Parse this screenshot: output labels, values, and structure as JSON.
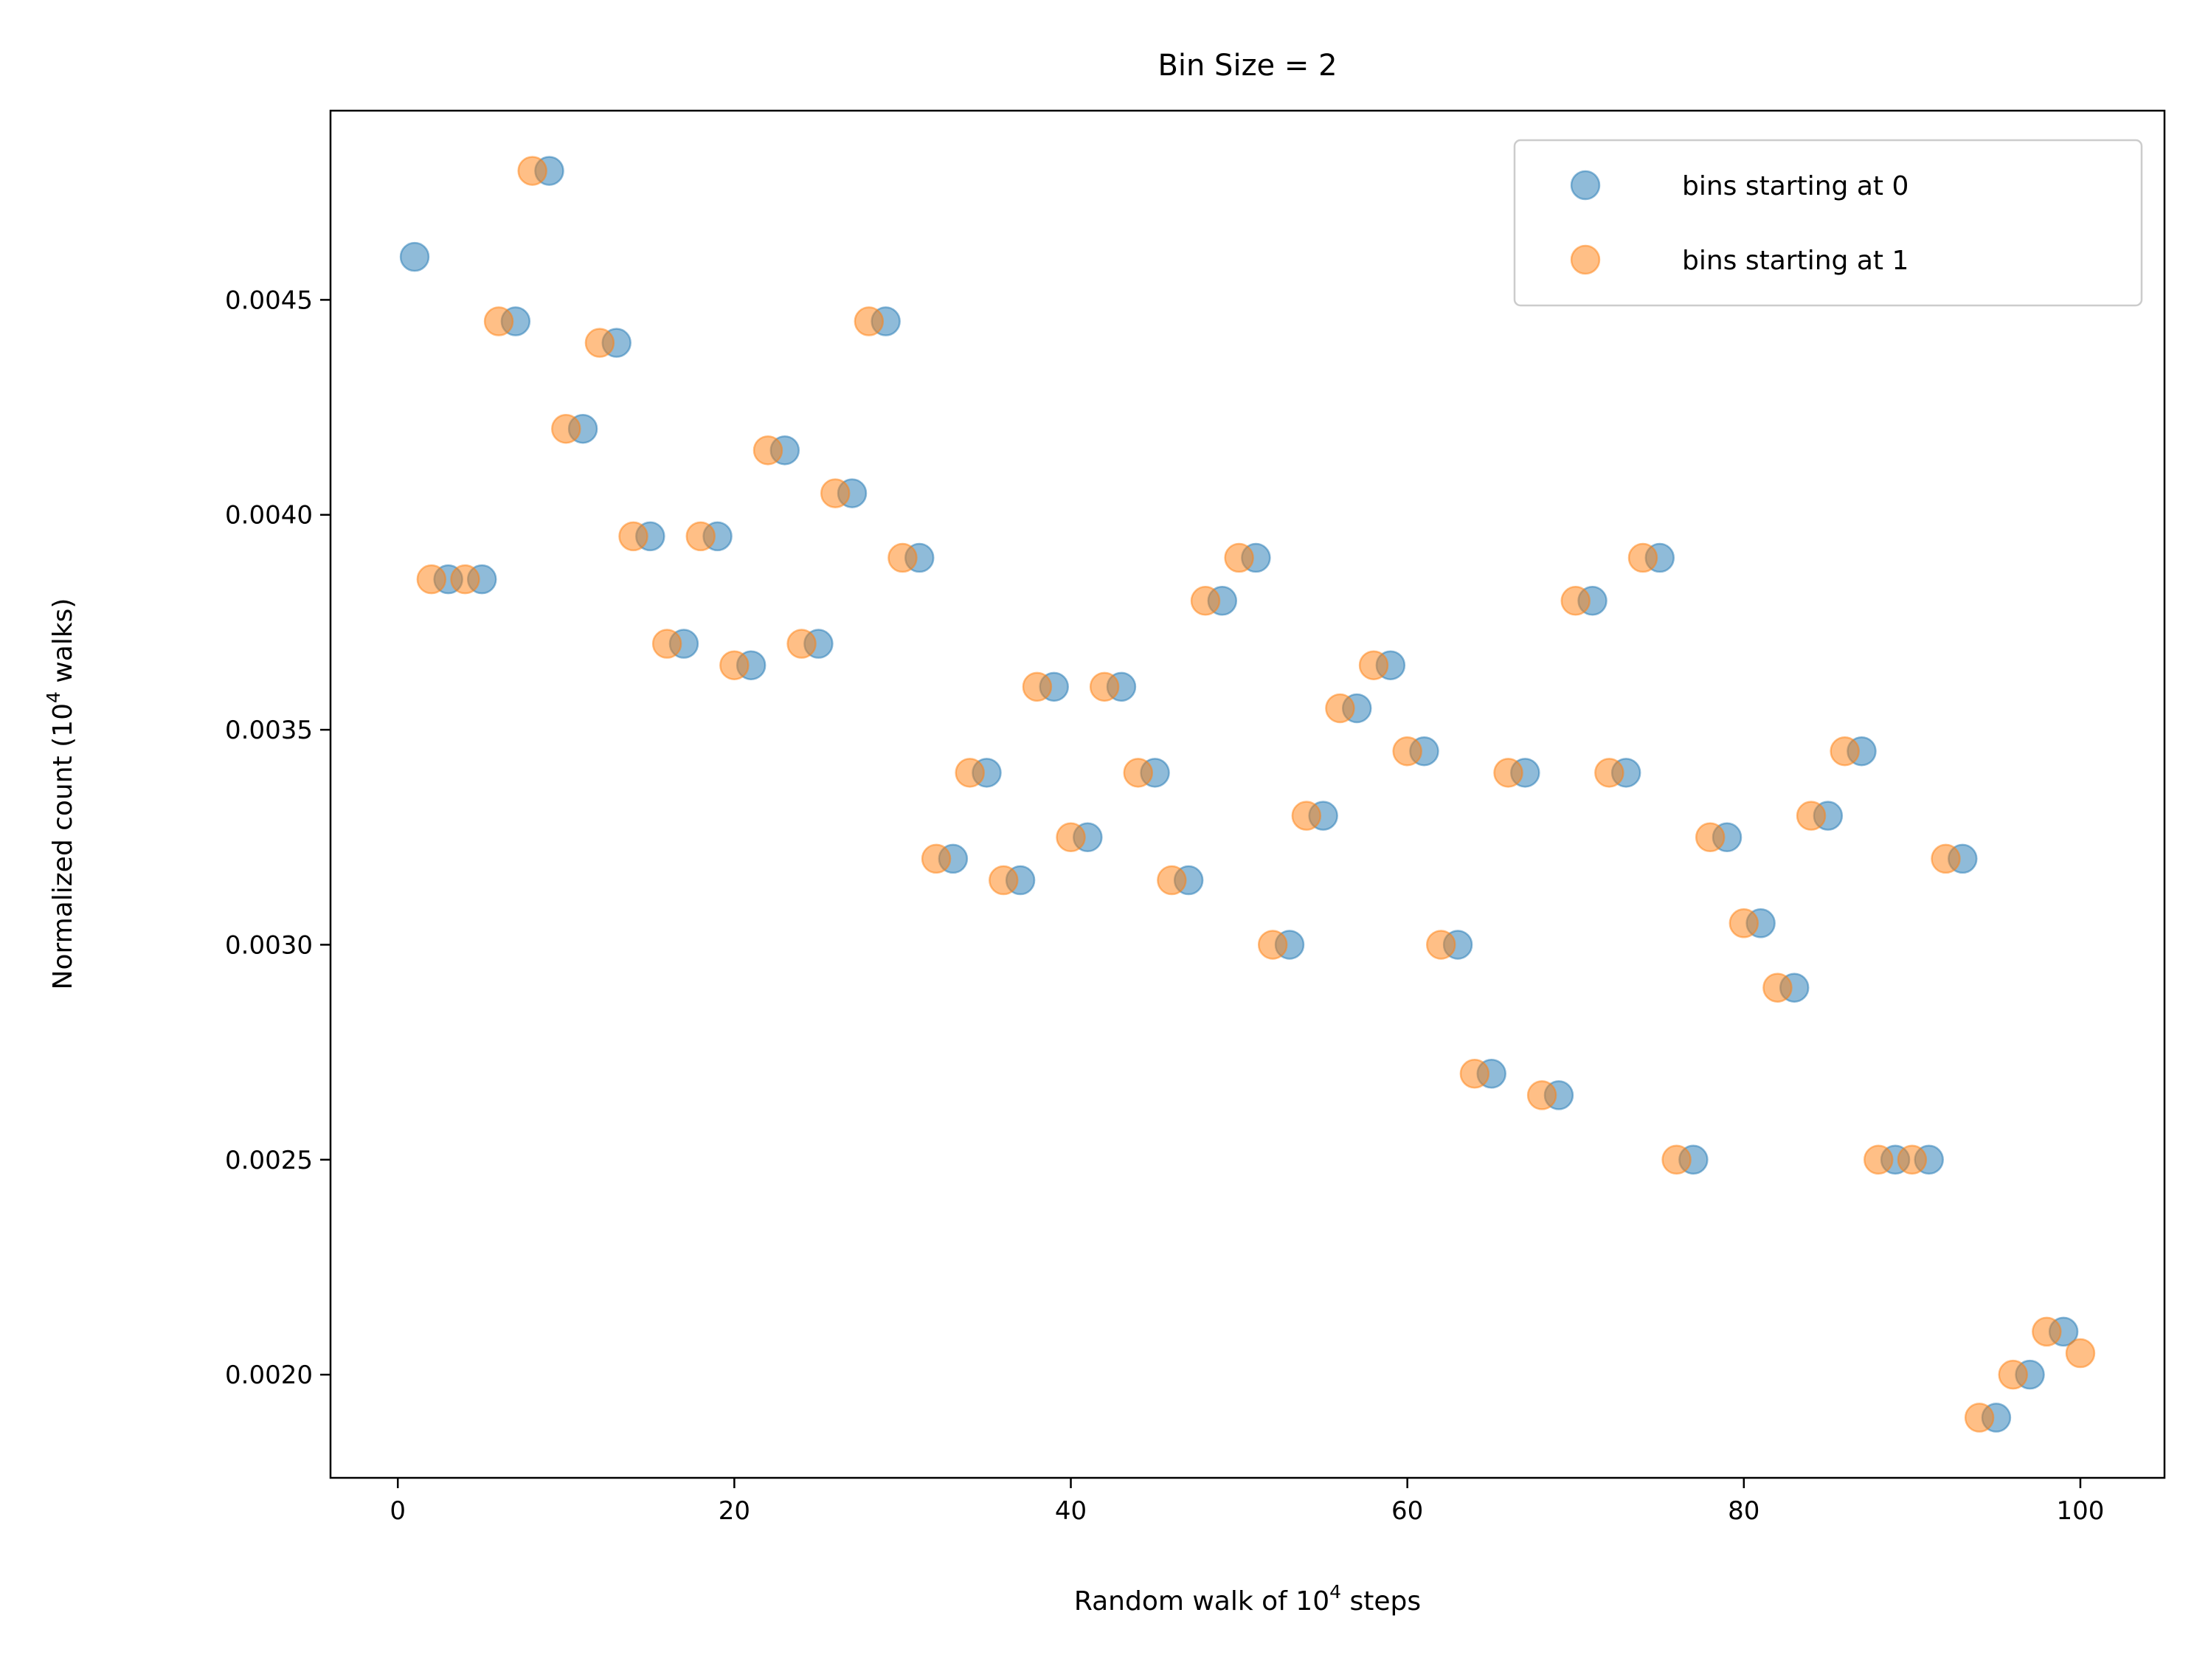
{
  "chart_data": {
    "type": "scatter",
    "title": "Bin Size = 2",
    "xlabel": {
      "base": "Random walk of 10",
      "sup": "4",
      "after": " steps"
    },
    "ylabel": {
      "base": "Normalized count (10",
      "sup": "4",
      "after": " walks)"
    },
    "xlim": [
      -4,
      105
    ],
    "ylim": [
      0.00176,
      0.00494
    ],
    "x_ticks": [
      0,
      20,
      40,
      60,
      80,
      100
    ],
    "x_tick_labels": [
      "0",
      "20",
      "40",
      "60",
      "80",
      "100"
    ],
    "y_ticks": [
      0.002,
      0.0025,
      0.003,
      0.0035,
      0.004,
      0.0045
    ],
    "y_tick_labels": [
      "0.0020",
      "0.0025",
      "0.0030",
      "0.0035",
      "0.0040",
      "0.0045"
    ],
    "grid": false,
    "legend_position": "top-right",
    "series": [
      {
        "name": "bins starting at 0",
        "color": "#1f77b4",
        "x": [
          1,
          3,
          5,
          7,
          9,
          11,
          13,
          15,
          17,
          19,
          21,
          23,
          25,
          27,
          29,
          31,
          33,
          35,
          37,
          39,
          41,
          43,
          45,
          47,
          49,
          51,
          53,
          55,
          57,
          59,
          61,
          63,
          65,
          67,
          69,
          71,
          73,
          75,
          77,
          79,
          81,
          83,
          85,
          87,
          89,
          91,
          93,
          95,
          97,
          99
        ],
        "y": [
          0.0046,
          0.00385,
          0.00385,
          0.00445,
          0.0048,
          0.0042,
          0.0044,
          0.00395,
          0.0037,
          0.00395,
          0.00365,
          0.00415,
          0.0037,
          0.00405,
          0.00445,
          0.0039,
          0.0032,
          0.0034,
          0.00315,
          0.0036,
          0.00325,
          0.0036,
          0.0034,
          0.00315,
          0.0038,
          0.0039,
          0.003,
          0.0033,
          0.00355,
          0.00365,
          0.00345,
          0.003,
          0.0027,
          0.0034,
          0.00265,
          0.0038,
          0.0034,
          0.0039,
          0.0025,
          0.00325,
          0.00305,
          0.0029,
          0.0033,
          0.00345,
          0.0025,
          0.0025,
          0.0032,
          0.0019,
          0.002,
          0.0021
        ]
      },
      {
        "name": "bins starting at 1",
        "color": "#ff7f0e",
        "x": [
          2,
          4,
          6,
          8,
          10,
          12,
          14,
          16,
          18,
          20,
          22,
          24,
          26,
          28,
          30,
          32,
          34,
          36,
          38,
          40,
          42,
          44,
          46,
          48,
          50,
          52,
          54,
          56,
          58,
          60,
          62,
          64,
          66,
          68,
          70,
          72,
          74,
          76,
          78,
          80,
          82,
          84,
          86,
          88,
          90,
          92,
          94,
          96,
          98,
          100
        ],
        "y": [
          0.00385,
          0.00385,
          0.00445,
          0.0048,
          0.0042,
          0.0044,
          0.00395,
          0.0037,
          0.00395,
          0.00365,
          0.00415,
          0.0037,
          0.00405,
          0.00445,
          0.0039,
          0.0032,
          0.0034,
          0.00315,
          0.0036,
          0.00325,
          0.0036,
          0.0034,
          0.00315,
          0.0038,
          0.0039,
          0.003,
          0.0033,
          0.00355,
          0.00365,
          0.00345,
          0.003,
          0.0027,
          0.0034,
          0.00265,
          0.0038,
          0.0034,
          0.0039,
          0.0025,
          0.00325,
          0.00305,
          0.0029,
          0.0033,
          0.00345,
          0.0025,
          0.0025,
          0.0032,
          0.0019,
          0.002,
          0.0021,
          0.00205
        ]
      }
    ]
  }
}
